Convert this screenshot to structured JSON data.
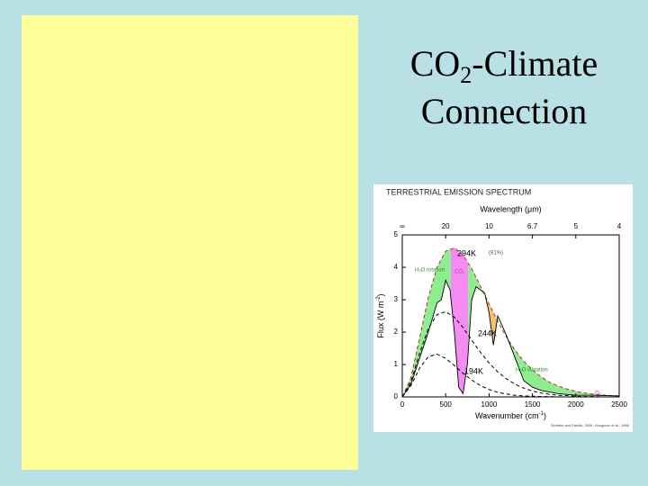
{
  "slide": {
    "title": {
      "prefix": "CO",
      "subscript": "2",
      "suffix": "-Climate",
      "line2": "Connection"
    }
  },
  "chart_data": {
    "type": "line",
    "title": "TERRESTRIAL EMISSION SPECTRUM",
    "top_label": "Wavelength (μm)",
    "y_label": [
      "Flux (W m",
      "-2",
      ")"
    ],
    "x_label": [
      "Wavenumber (cm",
      "-1",
      ")"
    ],
    "xlim": [
      0,
      2500
    ],
    "ylim": [
      0,
      5
    ],
    "xticks": [
      0,
      500,
      1000,
      1500,
      2000,
      2500
    ],
    "yticks": [
      0,
      1,
      2,
      3,
      4,
      5
    ],
    "top_ticks": [
      {
        "value": 0,
        "label": "∞"
      },
      {
        "value": 500,
        "label": "20"
      },
      {
        "value": 1000,
        "label": "10"
      },
      {
        "value": 1500,
        "label": "6.7"
      },
      {
        "value": 2000,
        "label": "5"
      },
      {
        "value": 2500,
        "label": "4"
      }
    ],
    "series": [
      {
        "name": "294K",
        "color": "#b03030",
        "dashed": true,
        "x": [
          0,
          100,
          200,
          300,
          400,
          500,
          600,
          700,
          800,
          900,
          1000,
          1100,
          1200,
          1300,
          1400,
          1500,
          1600,
          1700,
          1800,
          1900,
          2000,
          2100,
          2200,
          2300,
          2400,
          2500
        ],
        "values": [
          0,
          0.6,
          1.83,
          3.07,
          4.0,
          4.5,
          4.6,
          4.38,
          3.96,
          3.42,
          2.87,
          2.33,
          1.85,
          1.44,
          1.1,
          0.83,
          0.62,
          0.45,
          0.33,
          0.24,
          0.17,
          0.12,
          0.085,
          0.06,
          0.04,
          0.03
        ]
      },
      {
        "name": "244K",
        "color": "#000000",
        "dashed": true,
        "x": [
          0,
          100,
          200,
          300,
          400,
          500,
          600,
          700,
          800,
          900,
          1000,
          1100,
          1200,
          1300,
          1400,
          1500,
          1600,
          1700,
          1800,
          1900,
          2000,
          2100,
          2200,
          2300,
          2400,
          2500
        ],
        "values": [
          0,
          0.47,
          1.35,
          2.11,
          2.54,
          2.63,
          2.46,
          2.14,
          1.75,
          1.38,
          1.05,
          0.77,
          0.56,
          0.39,
          0.27,
          0.18,
          0.12,
          0.08,
          0.05,
          0.04,
          0.02,
          0.01,
          0.01,
          0,
          0,
          0
        ]
      },
      {
        "name": "194K",
        "color": "#000000",
        "dashed": true,
        "x": [
          0,
          100,
          200,
          300,
          400,
          500,
          600,
          700,
          800,
          900,
          1000,
          1100,
          1200,
          1300,
          1400,
          1500,
          1600,
          1700,
          1800,
          1900,
          2000,
          2100,
          2200,
          2300,
          2400,
          2500
        ],
        "values": [
          0,
          0.35,
          0.89,
          1.24,
          1.32,
          1.19,
          0.97,
          0.73,
          0.52,
          0.35,
          0.23,
          0.14,
          0.09,
          0.05,
          0.03,
          0.02,
          0.01,
          0.01,
          0,
          0,
          0,
          0,
          0,
          0,
          0,
          0
        ]
      },
      {
        "color": "#000000",
        "dashed": false,
        "x": [
          0,
          100,
          200,
          300,
          400,
          450,
          500,
          550,
          600,
          650,
          700,
          750,
          800,
          850,
          900,
          950,
          1000,
          1050,
          1100,
          1200,
          1300,
          1400,
          1500,
          1600,
          1800,
          2000,
          2200,
          2500
        ],
        "values": [
          0,
          0.4,
          1.2,
          2.0,
          2.9,
          3.0,
          3.6,
          3.3,
          2.0,
          0.3,
          0.1,
          1.0,
          3.0,
          3.4,
          3.3,
          3.2,
          2.6,
          1.6,
          2.5,
          1.9,
          1.2,
          0.5,
          0.3,
          0.2,
          0.1,
          0.05,
          0.05,
          0.03
        ]
      }
    ],
    "bands": [
      {
        "from": 0,
        "to": 560,
        "color": "#90ec90",
        "label": "H₂O rotation"
      },
      {
        "from": 560,
        "to": 760,
        "color": "#f48cf4",
        "label": "CO₂"
      },
      {
        "from": 760,
        "to": 980,
        "color": "#90ec90"
      },
      {
        "from": 980,
        "to": 1080,
        "color": "#f4c46a"
      },
      {
        "from": 1080,
        "to": 2500,
        "color": "#90ec90",
        "label": "H₂O vibration"
      }
    ],
    "annotations": [
      "(81%)",
      "O₃"
    ],
    "source": "Seinfeld and Pandis, 2006; Houghton et al., 1986"
  }
}
